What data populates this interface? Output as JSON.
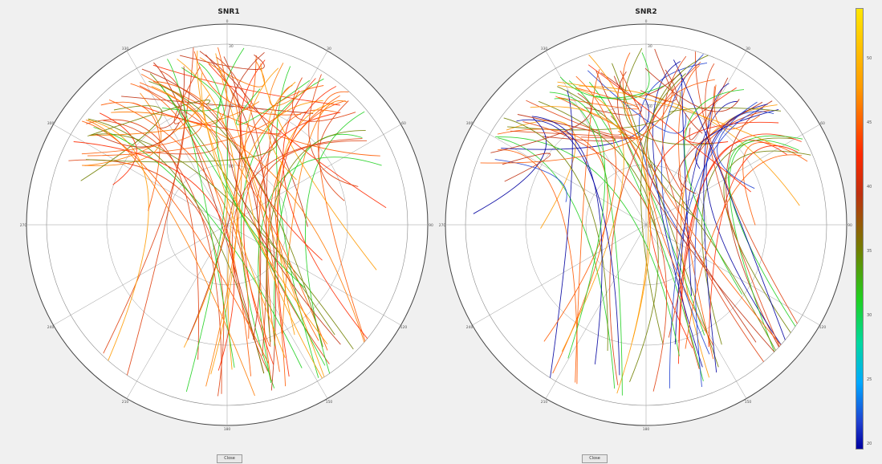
{
  "window": {
    "title": ""
  },
  "panels": [
    {
      "title": "SNR1",
      "button_label": "Close"
    },
    {
      "title": "SNR2",
      "button_label": "Close"
    }
  ],
  "axis_labels": {
    "elevation_ticks": [
      "30",
      "60",
      "90"
    ],
    "azimuth_ticks": [
      "0",
      "30",
      "60",
      "90",
      "120",
      "150",
      "180",
      "210",
      "240",
      "270",
      "300",
      "330"
    ]
  },
  "colorbar": {
    "ticks": [
      "50",
      "45",
      "40",
      "35",
      "30",
      "25",
      "20"
    ]
  },
  "chart_data": [
    {
      "type": "scatter",
      "title": "SNR1",
      "subtype": "polar skyplot of satellite tracks colored by SNR",
      "colormap": [
        "#0000a0",
        "#00a8ff",
        "#20d020",
        "#708000",
        "#ff2a00",
        "#ff9a00",
        "#ffe600"
      ],
      "color_range": [
        20,
        50
      ],
      "radial_range_deg": [
        0,
        90
      ],
      "grid": true
    },
    {
      "type": "scatter",
      "title": "SNR2",
      "subtype": "polar skyplot of satellite tracks colored by SNR",
      "colormap": [
        "#0000a0",
        "#00a8ff",
        "#20d020",
        "#708000",
        "#ff2a00",
        "#ff9a00",
        "#ffe600"
      ],
      "color_range": [
        20,
        50
      ],
      "radial_range_deg": [
        0,
        90
      ],
      "grid": true
    }
  ]
}
